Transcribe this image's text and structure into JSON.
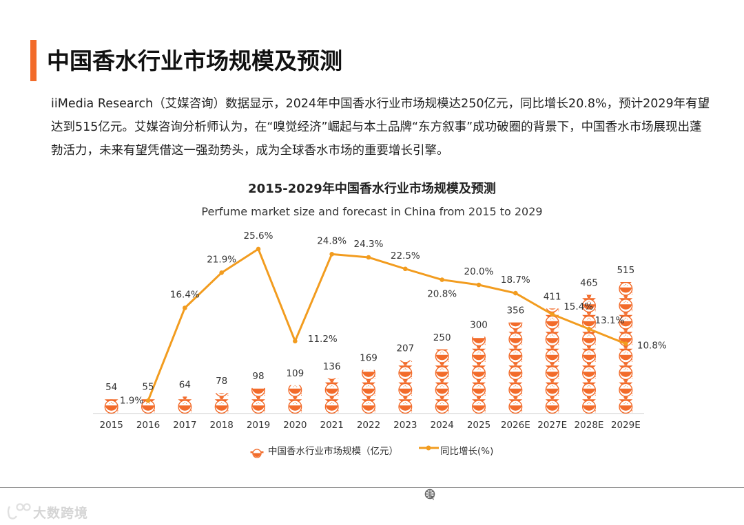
{
  "page": {
    "title": "中国香水行业市场规模及预测",
    "description": "iiMedia Research（艾媒咨询）数据显示，2024年中国香水行业市场规模达250亿元，同比增长20.8%，预计2029年有望达到515亿元。艾媒咨询分析师认为，在“嗅觉经济”崛起与本土品牌“东方叙事”成功破圈的背景下，中国香水市场展现出蓬勃活力，未来有望凭借这一强劲势头，成为全球香水市场的重要增长引擎。",
    "watermark": "大数跨境"
  },
  "colors": {
    "accent": "#f26b2a",
    "bar_orange": "#f26b2a",
    "line_orange": "#f29c1f",
    "axis": "#cccccc"
  },
  "icons": {
    "footer": "globe-cursor-icon",
    "watermark": "watermark-logo-icon",
    "legend_bar": "perfume-bottle-icon"
  },
  "chart_data": {
    "type": "bar",
    "title": "2015-2029年中国香水行业市场规模及预测",
    "subtitle": "Perfume market size and forecast in China from 2015 to 2029",
    "categories": [
      "2015",
      "2016",
      "2017",
      "2018",
      "2019",
      "2020",
      "2021",
      "2022",
      "2023",
      "2024",
      "2025",
      "2026E",
      "2027E",
      "2028E",
      "2029E"
    ],
    "series": [
      {
        "name": "中国香水行业市场规模（亿元）",
        "type": "bar",
        "axis": "left",
        "values": [
          54,
          55,
          64,
          78,
          98,
          109,
          136,
          169,
          207,
          250,
          300,
          356,
          411,
          465,
          515
        ],
        "labels": [
          "54",
          "55",
          "64",
          "78",
          "98",
          "109",
          "136",
          "169",
          "207",
          "250",
          "300",
          "356",
          "411",
          "465",
          "515"
        ]
      },
      {
        "name": "同比增长(%)",
        "type": "line",
        "axis": "right",
        "values": [
          null,
          1.9,
          16.4,
          21.9,
          25.6,
          11.2,
          24.8,
          24.3,
          22.5,
          20.8,
          20.0,
          18.7,
          15.4,
          13.1,
          10.8
        ],
        "labels": [
          "",
          "1.9%",
          "16.4%",
          "21.9%",
          "25.6%",
          "11.2%",
          "24.8%",
          "24.3%",
          "22.5%",
          "20.8%",
          "20.0%",
          "18.7%",
          "15.4%",
          "13.1%",
          "10.8%"
        ]
      }
    ],
    "ylim_left": [
      0,
      520
    ],
    "ylim_right": [
      0,
      36
    ],
    "grid": false,
    "legend_position": "bottom"
  }
}
